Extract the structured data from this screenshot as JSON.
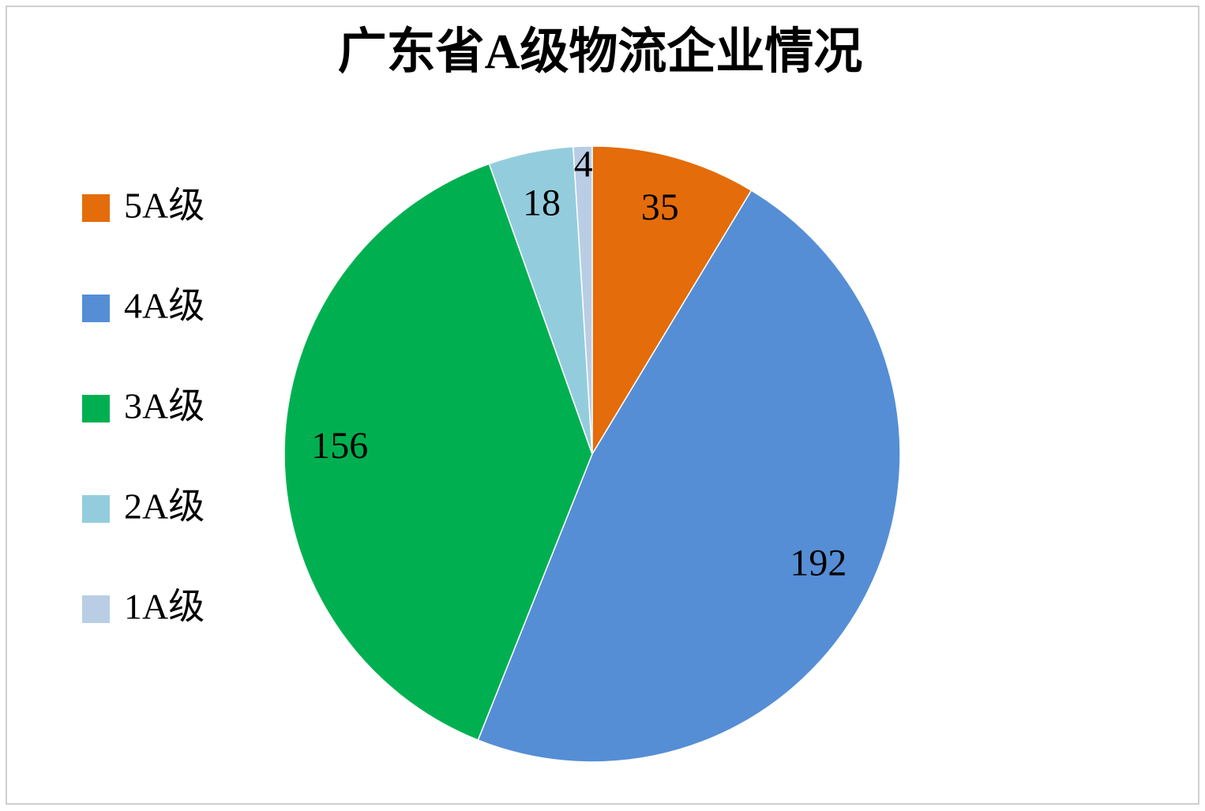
{
  "chart_data": {
    "type": "pie",
    "title": "广东省A级物流企业情况",
    "categories": [
      "5A级",
      "4A级",
      "3A级",
      "2A级",
      "1A级"
    ],
    "values": [
      35,
      192,
      156,
      18,
      4
    ],
    "colors": [
      "#e46c0a",
      "#558ed5",
      "#00b050",
      "#93cddd",
      "#b9cde5"
    ],
    "legend": "left"
  }
}
